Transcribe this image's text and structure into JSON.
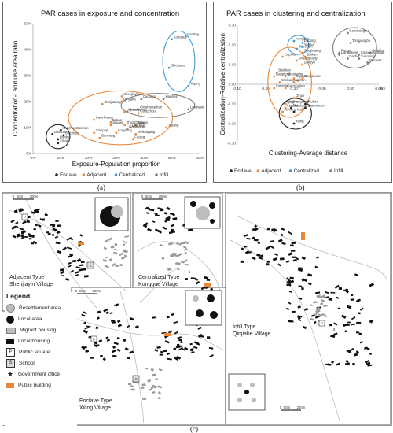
{
  "chart_data": [
    {
      "type": "scatter",
      "title": "PAR cases in exposure and concentration",
      "xlabel": "Exposure-Population proportion",
      "ylabel": "Concentration-Land use area ratio",
      "xlim": [
        0,
        60
      ],
      "ylim": [
        0,
        50
      ],
      "x_ticks": [
        "0%",
        "10%",
        "20%",
        "30%",
        "40%",
        "50%",
        "60%"
      ],
      "y_ticks": [
        "0%",
        "10%",
        "20%",
        "30%",
        "40%",
        "50%"
      ],
      "grid": false,
      "legend_position": "bottom",
      "series": [
        {
          "name": "Endave",
          "color": "#222222",
          "points": [
            {
              "label": "Xiling",
              "x": 9,
              "y": 4
            },
            {
              "label": "Lianbei",
              "x": 9,
              "y": 5.5
            },
            {
              "label": "Sheshuo",
              "x": 11,
              "y": 7
            },
            {
              "label": "Zhoumen",
              "x": 7,
              "y": 7.5
            },
            {
              "label": "Hanzhou",
              "x": 10,
              "y": 9
            }
          ]
        },
        {
          "name": "Adjacent",
          "color": "#e8893a",
          "points": [
            {
              "label": "Shenjiayin",
              "x": 32,
              "y": 22
            },
            {
              "label": "Qinjiahe",
              "x": 32,
              "y": 20
            },
            {
              "label": "Shuijiatang",
              "x": 25,
              "y": 19
            },
            {
              "label": "Liupiwan",
              "x": 33,
              "y": 16
            },
            {
              "label": "Qinghongzhan",
              "x": 38,
              "y": 17
            },
            {
              "label": "Cangzhou",
              "x": 38,
              "y": 15.5
            },
            {
              "label": "Caozhuang",
              "x": 22,
              "y": 13
            },
            {
              "label": "Baitan",
              "x": 28,
              "y": 12
            },
            {
              "label": "Jiajiajia",
              "x": 28,
              "y": 11
            },
            {
              "label": "Zhuozhuang",
              "x": 33,
              "y": 11
            },
            {
              "label": "Taiwan",
              "x": 37,
              "y": 11
            },
            {
              "label": "Dapucun",
              "x": 35,
              "y": 10
            },
            {
              "label": "Baishan",
              "x": 15,
              "y": 9
            },
            {
              "label": "Caowuwan",
              "x": 34,
              "y": 9.5
            },
            {
              "label": "Longfang",
              "x": 30,
              "y": 8
            },
            {
              "label": "Weibaiyang",
              "x": 37,
              "y": 7.5
            },
            {
              "label": "Ganyang",
              "x": 24,
              "y": 6
            },
            {
              "label": "Xiaopiqi",
              "x": 22,
              "y": 8
            },
            {
              "label": "Fuqing",
              "x": 36,
              "y": 5.5
            },
            {
              "label": "Jiutang",
              "x": 48,
              "y": 10
            }
          ]
        },
        {
          "name": "Centralized",
          "color": "#3b9ad6",
          "points": [
            {
              "label": "Kongque",
              "x": 50,
              "y": 44
            },
            {
              "label": "Daoting",
              "x": 55,
              "y": 45
            },
            {
              "label": "Shichuan",
              "x": 49,
              "y": 33
            },
            {
              "label": "Yaping",
              "x": 56,
              "y": 26
            }
          ]
        },
        {
          "name": "Infill",
          "color": "#7c7c7c",
          "points": [
            {
              "label": "Xiaoheiu",
              "x": 47,
              "y": 21
            },
            {
              "label": "Caopeng",
              "x": 39,
              "y": 21
            },
            {
              "label": "Longwan",
              "x": 56,
              "y": 17
            },
            {
              "label": "Guangshan",
              "x": 34,
              "y": 16
            }
          ]
        }
      ]
    },
    {
      "type": "scatter",
      "title": "PAR cases in clustering and centralization",
      "xlabel": "Clustering-Average distance",
      "ylabel": "Centralization-Relative centralization",
      "xlim": [
        0.1,
        0.6
      ],
      "ylim": [
        -0.3,
        0.3
      ],
      "x_ticks": [
        "0.10",
        "0.20",
        "0.30",
        "0.40",
        "0.50",
        "0.60"
      ],
      "y_ticks": [
        "0.30",
        "0.20",
        "0.10",
        "0.00",
        "-0.10",
        "-0.20",
        "-0.30"
      ],
      "x_unit": "km",
      "grid": false,
      "legend_position": "bottom",
      "series": [
        {
          "name": "Endave",
          "color": "#222222",
          "points": [
            {
              "label": "Xiling",
              "x": 0.3,
              "y": -0.2
            },
            {
              "label": "Luojihe",
              "x": 0.27,
              "y": -0.1
            },
            {
              "label": "Zhuhan",
              "x": 0.34,
              "y": -0.1
            },
            {
              "label": "Shapiguo",
              "x": 0.29,
              "y": -0.12
            },
            {
              "label": "Shaoxiacun",
              "x": 0.34,
              "y": -0.12
            },
            {
              "label": "Hushi",
              "x": 0.3,
              "y": -0.14
            }
          ]
        },
        {
          "name": "Adjacent",
          "color": "#e8893a",
          "points": [
            {
              "label": "Liupiwan",
              "x": 0.26,
              "y": 0.14
            },
            {
              "label": "Shuijiatang",
              "x": 0.33,
              "y": 0.16
            },
            {
              "label": "Baikan",
              "x": 0.34,
              "y": 0.14
            },
            {
              "label": "Shuangjiang",
              "x": 0.31,
              "y": 0.12
            },
            {
              "label": "Lengyu",
              "x": 0.33,
              "y": 0.1
            },
            {
              "label": "Baishan",
              "x": 0.24,
              "y": 0.06
            },
            {
              "label": "Ganpieng",
              "x": 0.23,
              "y": 0.04
            },
            {
              "label": "Shenjiayin",
              "x": 0.27,
              "y": 0.04
            },
            {
              "label": "Jiajiayu",
              "x": 0.3,
              "y": 0.03
            },
            {
              "label": "Caoyancun",
              "x": 0.33,
              "y": 0.03
            },
            {
              "label": "Weibaiyang",
              "x": 0.25,
              "y": 0.01
            },
            {
              "label": "Lishan",
              "x": 0.3,
              "y": 0.01
            },
            {
              "label": "Xiaomixi",
              "x": 0.23,
              "y": -0.02
            },
            {
              "label": "Gaizongjiao",
              "x": 0.27,
              "y": -0.02
            },
            {
              "label": "Qinjiu",
              "x": 0.3,
              "y": -0.07
            },
            {
              "label": "Qinghongzhan",
              "x": 0.27,
              "y": -0.1
            },
            {
              "label": "Lianbei",
              "x": 0.27,
              "y": -0.12
            },
            {
              "label": "Aishang",
              "x": 0.26,
              "y": -0.14
            }
          ]
        },
        {
          "name": "Centralized",
          "color": "#3b9ad6",
          "points": [
            {
              "label": "Kongque",
              "x": 0.3,
              "y": 0.22
            },
            {
              "label": "Daoting",
              "x": 0.33,
              "y": 0.21
            },
            {
              "label": "Shichuan",
              "x": 0.31,
              "y": 0.18
            },
            {
              "label": "Yabao",
              "x": 0.33,
              "y": 0.19
            }
          ]
        },
        {
          "name": "Infill",
          "color": "#7c7c7c",
          "points": [
            {
              "label": "Caochangpu",
              "x": 0.49,
              "y": 0.26
            },
            {
              "label": "Tongjiangbu",
              "x": 0.5,
              "y": 0.21
            },
            {
              "label": "Rongxi",
              "x": 0.46,
              "y": 0.16
            },
            {
              "label": "Liangjiawan",
              "x": 0.46,
              "y": 0.15
            },
            {
              "label": "Xiaoxiangshuan",
              "x": 0.53,
              "y": 0.15
            },
            {
              "label": "Qinjiahe",
              "x": 0.57,
              "y": 0.16
            },
            {
              "label": "Dazhe",
              "x": 0.49,
              "y": 0.13
            },
            {
              "label": "Xuanping",
              "x": 0.53,
              "y": 0.13
            },
            {
              "label": "Taimeas",
              "x": 0.56,
              "y": 0.11
            }
          ]
        }
      ]
    }
  ],
  "captions": {
    "a": "(a)",
    "b": "(b)",
    "c": "(c)"
  },
  "maps": {
    "adjacent": {
      "type": "Adjacent Type",
      "village": "Shenjiayin Village"
    },
    "centralized": {
      "type": "Centralized Type",
      "village": "Kongque Village"
    },
    "enclave": {
      "type": "Enclave Type",
      "village": "Xiling Village"
    },
    "infill": {
      "type": "Infill Type",
      "village": "Qinjiahe Village"
    },
    "scale": {
      "s0": "0",
      "s1": "50m",
      "s2": "100m",
      "s3": "200m"
    },
    "north": "N"
  },
  "legend": {
    "title": "Legend",
    "items": [
      {
        "label": "Resettlement area"
      },
      {
        "label": "Local area"
      },
      {
        "label": "Migrant housing"
      },
      {
        "label": "Local housing"
      },
      {
        "label": "Public square",
        "glyph": "P"
      },
      {
        "label": "School",
        "glyph": "S"
      },
      {
        "label": "Government office",
        "glyph": "★"
      },
      {
        "label": "Public building"
      }
    ]
  }
}
